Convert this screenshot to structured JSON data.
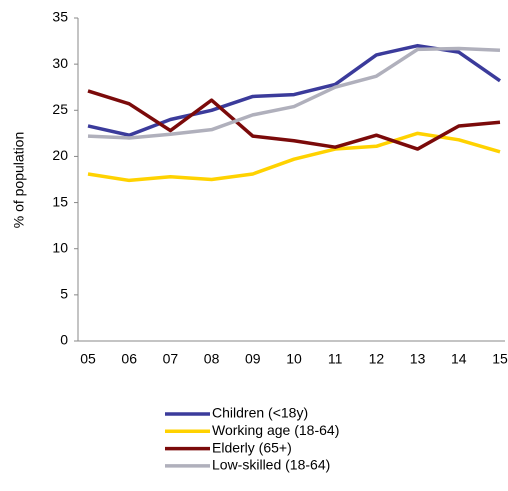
{
  "chart_data": {
    "type": "line",
    "y_label": "% of population",
    "categories": [
      "05",
      "06",
      "07",
      "08",
      "09",
      "10",
      "11",
      "12",
      "13",
      "14",
      "15"
    ],
    "series": [
      {
        "name": "Children (<18y)",
        "color": "#3b3b9b",
        "values": [
          23.3,
          22.3,
          24.0,
          25.0,
          26.5,
          26.7,
          27.8,
          31.0,
          32.0,
          31.3,
          28.2
        ]
      },
      {
        "name": "Working age (18-64)",
        "color": "#ffd200",
        "values": [
          18.1,
          17.4,
          17.8,
          17.5,
          18.1,
          19.7,
          20.8,
          21.1,
          22.5,
          21.8,
          20.5
        ]
      },
      {
        "name": "Elderly (65+)",
        "color": "#7b0a0a",
        "values": [
          27.1,
          25.7,
          22.8,
          26.1,
          22.2,
          21.7,
          21.0,
          22.3,
          20.8,
          23.3,
          23.7
        ]
      },
      {
        "name": "Low-skilled (18-64)",
        "color": "#b0b0bc",
        "values": [
          22.2,
          22.0,
          22.4,
          22.9,
          24.5,
          25.4,
          27.5,
          28.7,
          31.6,
          31.7,
          31.5
        ]
      }
    ],
    "ylim": [
      0,
      35
    ],
    "yticks": [
      0,
      5,
      10,
      15,
      20,
      25,
      30,
      35
    ],
    "grid": false
  }
}
